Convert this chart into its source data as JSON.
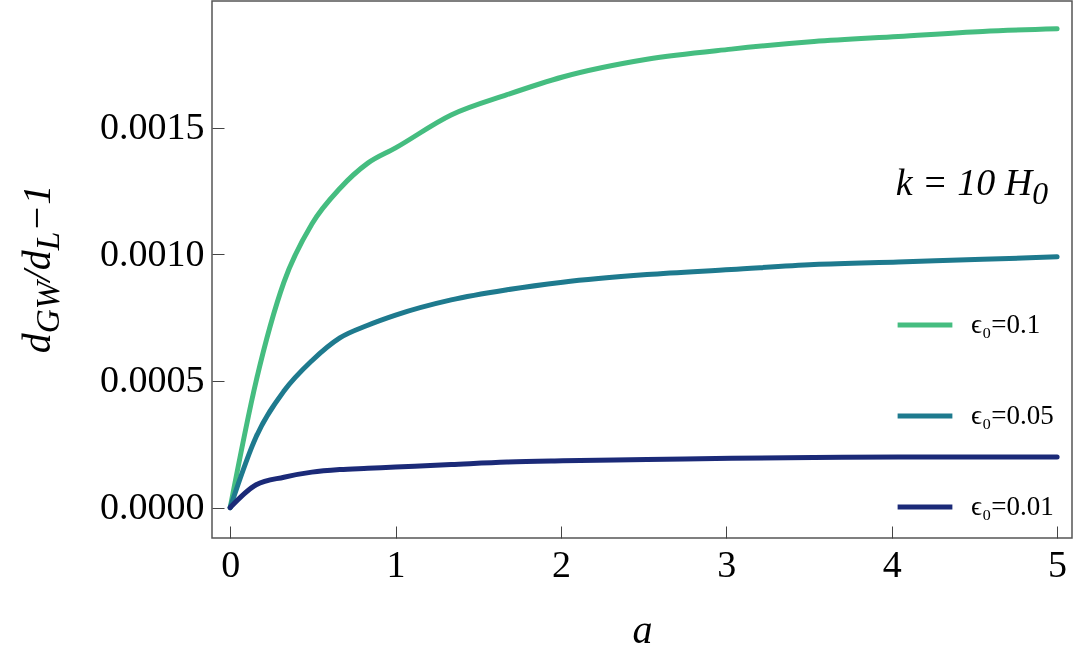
{
  "chart_data": {
    "type": "line",
    "xlabel": "a",
    "ylabel": "d$_{GW}$/d$_{L}$−1",
    "annotations": [
      "k = 10 H$_{0}$"
    ],
    "xlim": [
      -0.11,
      5.09
    ],
    "ylim": [
      -0.00012,
      0.002
    ],
    "xticks": [
      0,
      1,
      2,
      3,
      4,
      5
    ],
    "yticks": [
      {
        "value": 0,
        "label": "0.0000"
      },
      {
        "value": 0.0005,
        "label": "0.0005"
      },
      {
        "value": 0.001,
        "label": "0.0010"
      },
      {
        "value": 0.0015,
        "label": "0.0015"
      }
    ],
    "grid": false,
    "legend": "bottom right",
    "line_style": "solid",
    "marker": "none",
    "x": [
      0,
      0.157,
      0.325,
      0.494,
      0.663,
      0.832,
      1.0,
      1.336,
      1.674,
      2.01,
      2.52,
      3.03,
      3.53,
      4.04,
      4.55,
      5.0
    ],
    "series": [
      {
        "name": "ϵ₀=0.1",
        "color": "#45bd80",
        "values": [
          0,
          0.0005,
          0.00089,
          0.00112,
          0.00126,
          0.00136,
          0.00142,
          0.00155,
          0.00163,
          0.0017,
          0.00177,
          0.00181,
          0.00184,
          0.00186,
          0.00188,
          0.00189
        ]
      },
      {
        "name": "ϵ₀=0.05",
        "color": "#1e7a8e",
        "values": [
          0,
          0.00028,
          0.00046,
          0.00058,
          0.00067,
          0.00072,
          0.00076,
          0.00082,
          0.00086,
          0.00089,
          0.00092,
          0.00094,
          0.00096,
          0.00097,
          0.00098,
          0.00099
        ]
      },
      {
        "name": "ϵ₀=0.01",
        "color": "#1b2a78",
        "values": [
          0,
          9e-05,
          0.00012,
          0.00014,
          0.00015,
          0.000155,
          0.00016,
          0.00017,
          0.00018,
          0.000185,
          0.00019,
          0.000195,
          0.000198,
          0.0002,
          0.0002,
          0.0002
        ]
      }
    ]
  }
}
